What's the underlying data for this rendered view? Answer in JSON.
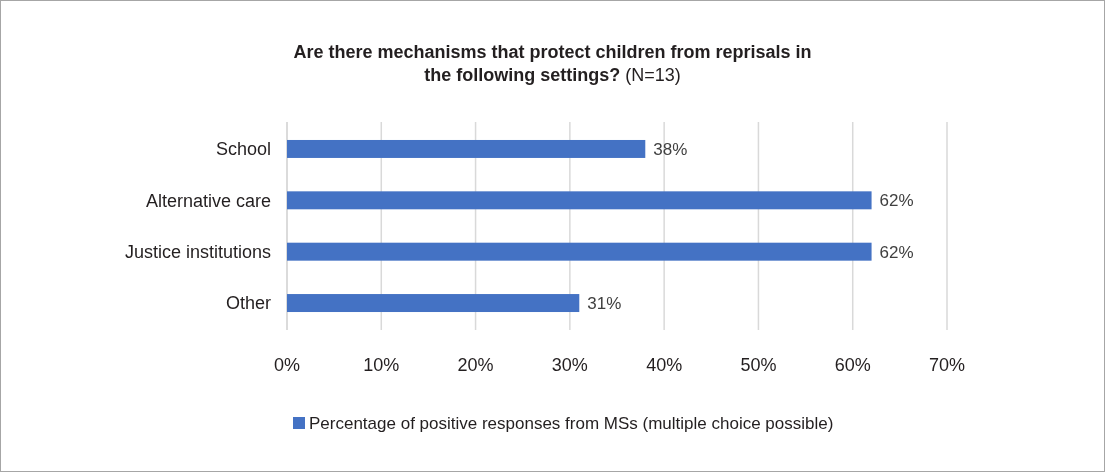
{
  "chart_data": {
    "type": "bar",
    "orientation": "horizontal",
    "title": "Are there mechanisms that protect children from reprisals in the following settings?",
    "subtitle": "(N=13)",
    "categories": [
      "School",
      "Alternative care",
      "Justice institutions",
      "Other"
    ],
    "series": [
      {
        "name": "Percentage of positive responses from MSs (multiple choice possible)",
        "color": "#4472c4",
        "values": [
          38,
          62,
          62,
          31
        ],
        "value_labels": [
          "38%",
          "62%",
          "62%",
          "31%"
        ]
      }
    ],
    "xlim": [
      0,
      70
    ],
    "xticks": [
      {
        "value": 0,
        "label": "0%"
      },
      {
        "value": 10,
        "label": "10%"
      },
      {
        "value": 20,
        "label": "20%"
      },
      {
        "value": 30,
        "label": "30%"
      },
      {
        "value": 40,
        "label": "40%"
      },
      {
        "value": 50,
        "label": "50%"
      },
      {
        "value": 60,
        "label": "60%"
      },
      {
        "value": 70,
        "label": "70%"
      }
    ],
    "grid": "x",
    "legend": "bottom"
  }
}
